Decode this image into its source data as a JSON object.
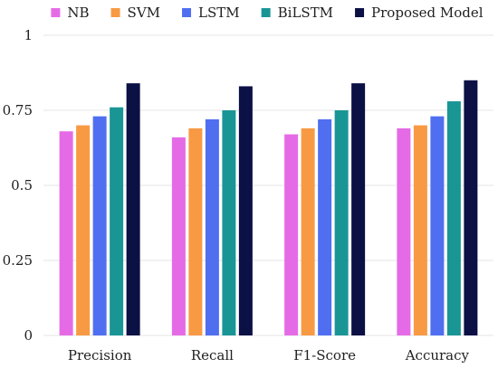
{
  "chart_data": {
    "type": "bar",
    "title": "",
    "xlabel": "",
    "ylabel": "",
    "categories": [
      "Precision",
      "Recall",
      "F1-Score",
      "Accuracy"
    ],
    "ylim": [
      0,
      1
    ],
    "yticks": [
      0,
      0.25,
      0.5,
      0.75,
      1
    ],
    "ytick_labels": [
      "0",
      "0.25",
      "0.5",
      "0.75",
      "1"
    ],
    "grid": true,
    "legend_position": "top",
    "series": [
      {
        "name": "NB",
        "color": "#e56be6",
        "values": [
          0.68,
          0.66,
          0.67,
          0.69
        ]
      },
      {
        "name": "SVM",
        "color": "#f89a44",
        "values": [
          0.7,
          0.69,
          0.69,
          0.7
        ]
      },
      {
        "name": "LSTM",
        "color": "#4f6ff0",
        "values": [
          0.73,
          0.72,
          0.72,
          0.73
        ]
      },
      {
        "name": "BiLSTM",
        "color": "#1a9596",
        "values": [
          0.76,
          0.75,
          0.75,
          0.78
        ]
      },
      {
        "name": "Proposed Model",
        "color": "#0b1045",
        "values": [
          0.84,
          0.83,
          0.84,
          0.85
        ]
      }
    ]
  }
}
